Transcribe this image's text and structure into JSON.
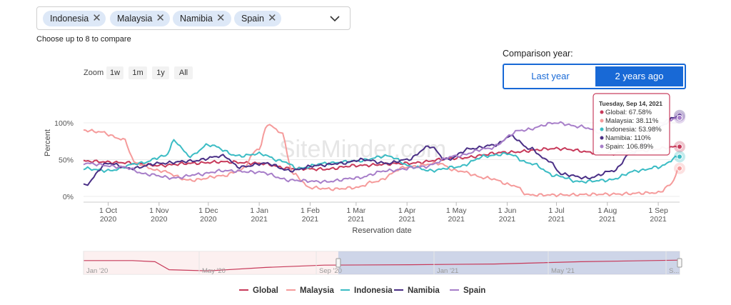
{
  "selector": {
    "chips": [
      "Indonesia",
      "Malaysia",
      "Namibia",
      "Spain"
    ],
    "hint": "Choose up to 8 to compare"
  },
  "comparison": {
    "label": "Comparison year:",
    "options": [
      "Last year",
      "2 years ago"
    ],
    "selected": "2 years ago"
  },
  "zoom": {
    "label": "Zoom",
    "buttons": [
      "1w",
      "1m",
      "1y",
      "All"
    ]
  },
  "watermark": "SiteMinder.com",
  "chart_data": {
    "type": "line",
    "ylabel": "Percent",
    "xlabel": "Reservation date",
    "ylim": [
      0,
      110
    ],
    "yticks": [
      "0%",
      "50%",
      "100%"
    ],
    "x_range": [
      "2020-09-16",
      "2021-09-14"
    ],
    "x_ticks": [
      {
        "date": "2020-10-01",
        "line1": "1 Oct",
        "line2": "2020"
      },
      {
        "date": "2020-11-01",
        "line1": "1 Nov",
        "line2": "2020"
      },
      {
        "date": "2020-12-01",
        "line1": "1 Dec",
        "line2": "2020"
      },
      {
        "date": "2021-01-01",
        "line1": "1 Jan",
        "line2": "2021"
      },
      {
        "date": "2021-02-01",
        "line1": "1 Feb",
        "line2": "2021"
      },
      {
        "date": "2021-03-01",
        "line1": "1 Mar",
        "line2": "2021"
      },
      {
        "date": "2021-04-01",
        "line1": "1 Apr",
        "line2": "2021"
      },
      {
        "date": "2021-05-01",
        "line1": "1 May",
        "line2": "2021"
      },
      {
        "date": "2021-06-01",
        "line1": "1 Jun",
        "line2": "2021"
      },
      {
        "date": "2021-07-01",
        "line1": "1 Jul",
        "line2": "2021"
      },
      {
        "date": "2021-08-01",
        "line1": "1 Aug",
        "line2": "2021"
      },
      {
        "date": "2021-09-01",
        "line1": "1 Sep",
        "line2": "2021"
      }
    ],
    "series": [
      {
        "name": "Global",
        "color": "#c73a5a",
        "points": [
          [
            "2020-09-16",
            48
          ],
          [
            "2020-10-10",
            46
          ],
          [
            "2020-11-01",
            42
          ],
          [
            "2020-11-20",
            45
          ],
          [
            "2020-12-10",
            47
          ],
          [
            "2021-01-01",
            45
          ],
          [
            "2021-01-20",
            38
          ],
          [
            "2021-02-10",
            37
          ],
          [
            "2021-03-01",
            42
          ],
          [
            "2021-04-01",
            45
          ],
          [
            "2021-05-01",
            52
          ],
          [
            "2021-06-01",
            60
          ],
          [
            "2021-07-01",
            65
          ],
          [
            "2021-08-01",
            58
          ],
          [
            "2021-08-20",
            62
          ],
          [
            "2021-09-14",
            67.58
          ]
        ]
      },
      {
        "name": "Malaysia",
        "color": "#f59b9b",
        "points": [
          [
            "2020-09-16",
            90
          ],
          [
            "2020-09-25",
            88
          ],
          [
            "2020-10-10",
            78
          ],
          [
            "2020-10-18",
            45
          ],
          [
            "2020-11-01",
            35
          ],
          [
            "2020-11-20",
            22
          ],
          [
            "2020-12-10",
            28
          ],
          [
            "2020-12-20",
            35
          ],
          [
            "2021-01-01",
            65
          ],
          [
            "2021-01-06",
            98
          ],
          [
            "2021-01-14",
            88
          ],
          [
            "2021-01-22",
            30
          ],
          [
            "2021-02-01",
            12
          ],
          [
            "2021-02-15",
            10
          ],
          [
            "2021-03-01",
            12
          ],
          [
            "2021-03-12",
            20
          ],
          [
            "2021-04-01",
            40
          ],
          [
            "2021-04-20",
            45
          ],
          [
            "2021-05-01",
            35
          ],
          [
            "2021-05-20",
            25
          ],
          [
            "2021-06-05",
            15
          ],
          [
            "2021-06-14",
            2
          ],
          [
            "2021-07-01",
            2
          ],
          [
            "2021-08-01",
            3
          ],
          [
            "2021-09-01",
            5
          ],
          [
            "2021-09-08",
            15
          ],
          [
            "2021-09-14",
            38.11
          ]
        ]
      },
      {
        "name": "Indonesia",
        "color": "#3bbcc4",
        "points": [
          [
            "2020-09-16",
            38
          ],
          [
            "2020-10-01",
            35
          ],
          [
            "2020-10-20",
            45
          ],
          [
            "2020-11-05",
            55
          ],
          [
            "2020-11-10",
            75
          ],
          [
            "2020-11-20",
            55
          ],
          [
            "2020-12-01",
            70
          ],
          [
            "2020-12-20",
            55
          ],
          [
            "2021-01-01",
            58
          ],
          [
            "2021-01-15",
            48
          ],
          [
            "2021-01-25",
            38
          ],
          [
            "2021-02-10",
            45
          ],
          [
            "2021-03-01",
            48
          ],
          [
            "2021-03-20",
            55
          ],
          [
            "2021-04-05",
            40
          ],
          [
            "2021-04-15",
            35
          ],
          [
            "2021-05-01",
            40
          ],
          [
            "2021-05-20",
            55
          ],
          [
            "2021-06-01",
            58
          ],
          [
            "2021-06-15",
            45
          ],
          [
            "2021-07-01",
            28
          ],
          [
            "2021-07-15",
            20
          ],
          [
            "2021-08-01",
            22
          ],
          [
            "2021-08-20",
            35
          ],
          [
            "2021-09-01",
            40
          ],
          [
            "2021-09-14",
            53.98
          ]
        ]
      },
      {
        "name": "Namibia",
        "color": "#4a2f86",
        "points": [
          [
            "2020-09-16",
            15
          ],
          [
            "2020-10-01",
            45
          ],
          [
            "2020-10-15",
            38
          ],
          [
            "2020-11-01",
            45
          ],
          [
            "2020-11-20",
            48
          ],
          [
            "2020-12-10",
            55
          ],
          [
            "2020-12-20",
            40
          ],
          [
            "2021-01-05",
            45
          ],
          [
            "2021-01-20",
            35
          ],
          [
            "2021-02-05",
            42
          ],
          [
            "2021-02-20",
            45
          ],
          [
            "2021-03-05",
            50
          ],
          [
            "2021-03-20",
            45
          ],
          [
            "2021-04-01",
            50
          ],
          [
            "2021-04-15",
            68
          ],
          [
            "2021-04-25",
            50
          ],
          [
            "2021-05-10",
            65
          ],
          [
            "2021-05-25",
            70
          ],
          [
            "2021-06-03",
            82
          ],
          [
            "2021-06-15",
            65
          ],
          [
            "2021-06-25",
            50
          ],
          [
            "2021-07-05",
            30
          ],
          [
            "2021-07-20",
            25
          ],
          [
            "2021-08-05",
            35
          ],
          [
            "2021-08-15",
            58
          ],
          [
            "2021-09-01",
            95
          ],
          [
            "2021-09-14",
            110
          ]
        ]
      },
      {
        "name": "Spain",
        "color": "#a77ec9",
        "points": [
          [
            "2020-09-16",
            45
          ],
          [
            "2020-10-10",
            40
          ],
          [
            "2020-10-25",
            30
          ],
          [
            "2020-11-10",
            25
          ],
          [
            "2020-11-25",
            30
          ],
          [
            "2020-12-10",
            35
          ],
          [
            "2021-01-01",
            33
          ],
          [
            "2021-01-20",
            22
          ],
          [
            "2021-02-10",
            20
          ],
          [
            "2021-03-01",
            25
          ],
          [
            "2021-03-20",
            35
          ],
          [
            "2021-04-10",
            40
          ],
          [
            "2021-05-01",
            55
          ],
          [
            "2021-05-20",
            65
          ],
          [
            "2021-06-10",
            90
          ],
          [
            "2021-07-01",
            100
          ],
          [
            "2021-07-15",
            95
          ],
          [
            "2021-08-01",
            85
          ],
          [
            "2021-08-15",
            90
          ],
          [
            "2021-09-01",
            100
          ],
          [
            "2021-09-14",
            106.89
          ]
        ]
      }
    ],
    "tooltip": {
      "title": "Tuesday, Sep 14, 2021",
      "rows": [
        "Global: 67.58%",
        "Malaysia: 38.11%",
        "Indonesia: 53.98%",
        "Namibia: 110%",
        "Spain: 106.89%"
      ]
    },
    "navigator": {
      "labels": [
        "Jan '20",
        "May '20",
        "Sep '20",
        "Jan '21",
        "May '21",
        "S..."
      ],
      "selected_range": [
        "2020-09-16",
        "2021-09-14"
      ],
      "full_range": [
        "2019-12-20",
        "2021-09-14"
      ],
      "series": [
        [
          "2019-12-20",
          60
        ],
        [
          "2020-02-10",
          60
        ],
        [
          "2020-03-05",
          55
        ],
        [
          "2020-03-20",
          20
        ],
        [
          "2020-05-01",
          15
        ],
        [
          "2020-07-01",
          30
        ],
        [
          "2020-09-01",
          40
        ],
        [
          "2020-12-01",
          42
        ],
        [
          "2021-03-01",
          45
        ],
        [
          "2021-06-01",
          55
        ],
        [
          "2021-09-14",
          62
        ]
      ]
    },
    "legend": [
      "Global",
      "Malaysia",
      "Indonesia",
      "Namibia",
      "Spain"
    ]
  }
}
